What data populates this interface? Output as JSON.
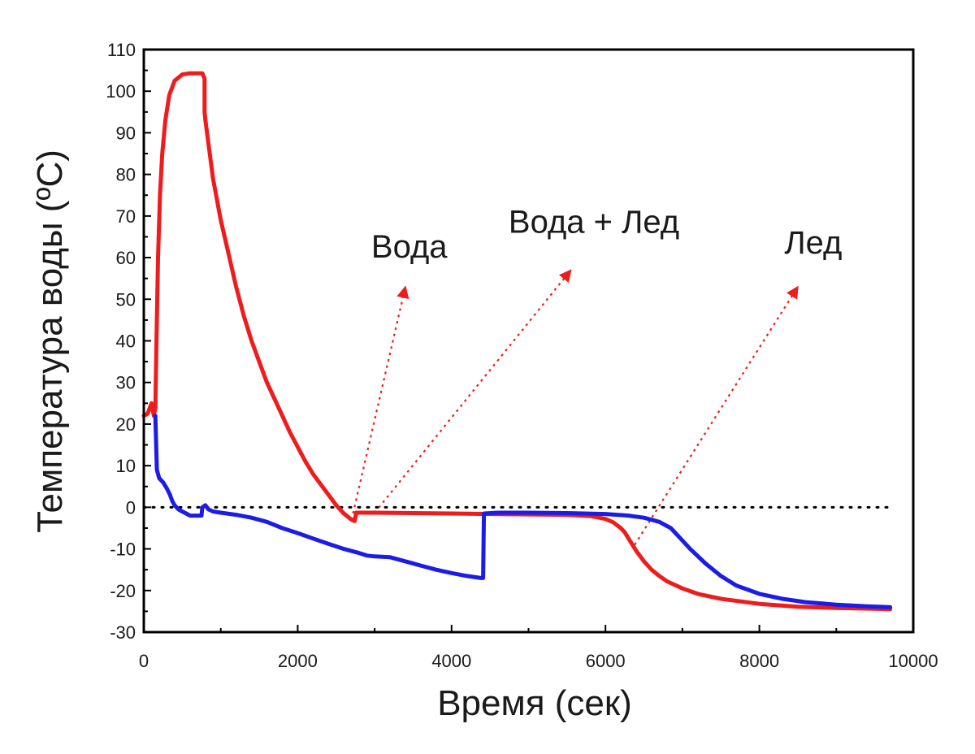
{
  "chart_data": {
    "type": "line",
    "xlabel": "Время (сек)",
    "ylabel": "Температура воды (ºC)",
    "xlim": [
      0,
      10000
    ],
    "ylim": [
      -30,
      110
    ],
    "x_ticks": [
      0,
      2000,
      4000,
      6000,
      8000,
      10000
    ],
    "y_ticks": [
      -30,
      -20,
      -10,
      0,
      10,
      20,
      30,
      40,
      50,
      60,
      70,
      80,
      90,
      100,
      110
    ],
    "grid": false,
    "legend": "none",
    "reference_line": {
      "y": 0,
      "style": "dotted",
      "color": "#000000"
    },
    "series": [
      {
        "color": "#ee1c1c",
        "points": [
          [
            0,
            22
          ],
          [
            50,
            22.5
          ],
          [
            100,
            25
          ],
          [
            130,
            22
          ],
          [
            150,
            24
          ],
          [
            165,
            40
          ],
          [
            185,
            60
          ],
          [
            210,
            75
          ],
          [
            240,
            85
          ],
          [
            280,
            93
          ],
          [
            330,
            99
          ],
          [
            400,
            102.5
          ],
          [
            500,
            104
          ],
          [
            600,
            104.3
          ],
          [
            700,
            104.3
          ],
          [
            760,
            104.3
          ],
          [
            790,
            103
          ],
          [
            790,
            95
          ],
          [
            800,
            93
          ],
          [
            850,
            86
          ],
          [
            900,
            79
          ],
          [
            1000,
            69
          ],
          [
            1100,
            61
          ],
          [
            1200,
            53
          ],
          [
            1300,
            46
          ],
          [
            1400,
            40
          ],
          [
            1500,
            35
          ],
          [
            1600,
            30
          ],
          [
            1700,
            26
          ],
          [
            1800,
            22
          ],
          [
            1900,
            18
          ],
          [
            2000,
            14.5
          ],
          [
            2100,
            11
          ],
          [
            2200,
            8
          ],
          [
            2300,
            5.5
          ],
          [
            2400,
            3
          ],
          [
            2500,
            0.5
          ],
          [
            2600,
            -1.5
          ],
          [
            2700,
            -3
          ],
          [
            2740,
            -3.3
          ],
          [
            2760,
            -1.3
          ],
          [
            3000,
            -1.3
          ],
          [
            3500,
            -1.4
          ],
          [
            4000,
            -1.5
          ],
          [
            4500,
            -1.6
          ],
          [
            5000,
            -1.7
          ],
          [
            5500,
            -1.8
          ],
          [
            5800,
            -2.1
          ],
          [
            6000,
            -2.8
          ],
          [
            6100,
            -3.6
          ],
          [
            6200,
            -5
          ],
          [
            6250,
            -6
          ],
          [
            6300,
            -7.5
          ],
          [
            6400,
            -10.5
          ],
          [
            6500,
            -13
          ],
          [
            6600,
            -15
          ],
          [
            6700,
            -16.5
          ],
          [
            6800,
            -17.8
          ],
          [
            7000,
            -19.5
          ],
          [
            7200,
            -20.8
          ],
          [
            7500,
            -22
          ],
          [
            8000,
            -23.2
          ],
          [
            8500,
            -23.9
          ],
          [
            9000,
            -24.2
          ],
          [
            9500,
            -24.4
          ],
          [
            9700,
            -24.5
          ]
        ]
      },
      {
        "color": "#1c1ce6",
        "points": [
          [
            150,
            22
          ],
          [
            160,
            15
          ],
          [
            170,
            9
          ],
          [
            200,
            7
          ],
          [
            250,
            6
          ],
          [
            300,
            4.5
          ],
          [
            340,
            3
          ],
          [
            370,
            1.5
          ],
          [
            400,
            0.5
          ],
          [
            450,
            -0.5
          ],
          [
            500,
            -1
          ],
          [
            550,
            -1.5
          ],
          [
            600,
            -2
          ],
          [
            650,
            -2
          ],
          [
            700,
            -2
          ],
          [
            750,
            -2
          ],
          [
            760,
            0
          ],
          [
            800,
            0.5
          ],
          [
            840,
            -0.5
          ],
          [
            900,
            -1
          ],
          [
            1000,
            -1.3
          ],
          [
            1200,
            -1.8
          ],
          [
            1400,
            -2.5
          ],
          [
            1600,
            -3.5
          ],
          [
            1800,
            -5
          ],
          [
            2000,
            -6.2
          ],
          [
            2200,
            -7.5
          ],
          [
            2400,
            -8.8
          ],
          [
            2600,
            -10
          ],
          [
            2800,
            -11
          ],
          [
            2900,
            -11.6
          ],
          [
            3000,
            -11.8
          ],
          [
            3200,
            -12
          ],
          [
            3400,
            -13
          ],
          [
            3600,
            -14
          ],
          [
            3800,
            -15
          ],
          [
            4000,
            -15.8
          ],
          [
            4200,
            -16.5
          ],
          [
            4380,
            -17
          ],
          [
            4410,
            -17
          ],
          [
            4420,
            -1.5
          ],
          [
            4600,
            -1.3
          ],
          [
            5000,
            -1.3
          ],
          [
            5500,
            -1.4
          ],
          [
            6000,
            -1.6
          ],
          [
            6300,
            -2
          ],
          [
            6500,
            -2.5
          ],
          [
            6700,
            -3.5
          ],
          [
            6850,
            -5
          ],
          [
            6950,
            -7
          ],
          [
            7100,
            -10
          ],
          [
            7300,
            -13.5
          ],
          [
            7500,
            -16.5
          ],
          [
            7700,
            -18.8
          ],
          [
            8000,
            -20.8
          ],
          [
            8300,
            -22
          ],
          [
            8600,
            -22.8
          ],
          [
            9000,
            -23.4
          ],
          [
            9400,
            -23.8
          ],
          [
            9700,
            -24
          ]
        ]
      }
    ],
    "annotations": [
      {
        "text": "Вода",
        "x": 3450,
        "y": 60,
        "arrow_from": [
          2700,
          -3
        ],
        "arrow_to": [
          3400,
          53
        ],
        "arrow_color": "#ee1c1c"
      },
      {
        "text": "Вода + Лед",
        "x": 5850,
        "y": 66,
        "arrow_from": [
          3000,
          -1.3
        ],
        "arrow_to": [
          5550,
          57
        ],
        "arrow_color": "#ee1c1c"
      },
      {
        "text": "Лед",
        "x": 8700,
        "y": 61,
        "arrow_from": [
          6380,
          -9
        ],
        "arrow_to": [
          8500,
          53
        ],
        "arrow_color": "#ee1c1c"
      }
    ]
  }
}
